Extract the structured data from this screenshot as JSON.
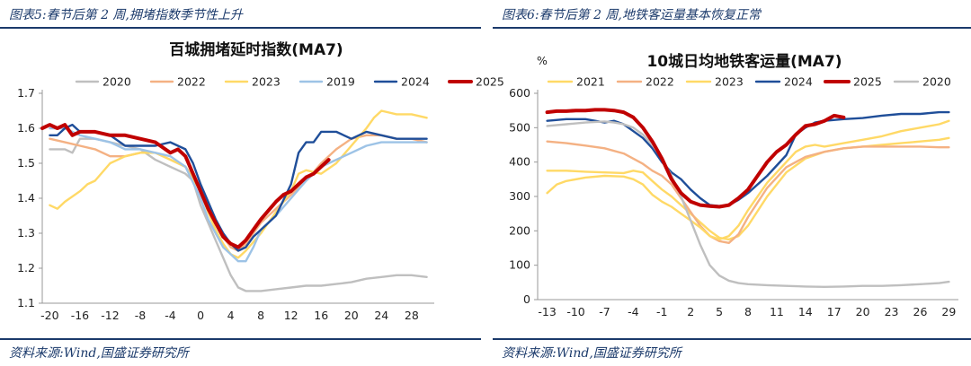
{
  "panels": {
    "left": {
      "title": "图表5:春节后第 2 周,拥堵指数季节性上升",
      "source": "资料来源:Wind,国盛证券研究所"
    },
    "right": {
      "title": "图表6:春节后第 2 周,地铁客运量基本恢复正常",
      "source": "资料来源:Wind,国盛证券研究所"
    }
  },
  "colors": {
    "2019": "#9dc3e6",
    "2020": "#bfbfbf",
    "2021": "#ffd966",
    "2022": "#f4b183",
    "2023": "#ffd966",
    "2024": "#1f4e99",
    "2025": "#c00000"
  },
  "chart_data": [
    {
      "type": "line",
      "title": "百城拥堵延时指数(MA7)",
      "xlabel": "",
      "ylabel": "",
      "xlim": [
        -21,
        31
      ],
      "ylim": [
        1.1,
        1.7
      ],
      "xticks": [
        -20,
        -16,
        -12,
        -8,
        -4,
        0,
        4,
        8,
        12,
        16,
        20,
        24,
        28
      ],
      "yticks": [
        1.1,
        1.2,
        1.3,
        1.4,
        1.5,
        1.6,
        1.7
      ],
      "legend": [
        "2020",
        "2022",
        "2023",
        "2019",
        "2024",
        "2025"
      ],
      "series": [
        {
          "name": "2020",
          "key": "2020",
          "width": 2.4,
          "x": [
            -20,
            -19,
            -18,
            -17,
            -16,
            -14,
            -12,
            -10,
            -8,
            -6,
            -4,
            -2,
            -1,
            0,
            1,
            2,
            3,
            4,
            5,
            6,
            8,
            10,
            12,
            14,
            16,
            18,
            20,
            22,
            24,
            26,
            28,
            30
          ],
          "y": [
            1.54,
            1.54,
            1.54,
            1.53,
            1.57,
            1.57,
            1.56,
            1.55,
            1.54,
            1.51,
            1.49,
            1.47,
            1.45,
            1.38,
            1.33,
            1.28,
            1.23,
            1.18,
            1.145,
            1.135,
            1.135,
            1.14,
            1.145,
            1.15,
            1.15,
            1.155,
            1.16,
            1.17,
            1.175,
            1.18,
            1.18,
            1.175
          ]
        },
        {
          "name": "2022",
          "key": "2022",
          "width": 2.4,
          "x": [
            -20,
            -18,
            -16,
            -14,
            -12,
            -10,
            -8,
            -6,
            -4,
            -2,
            -1,
            0,
            1,
            2,
            3,
            4,
            5,
            6,
            7,
            8,
            10,
            12,
            14,
            16,
            18,
            20,
            22,
            24,
            26,
            28,
            30
          ],
          "y": [
            1.57,
            1.56,
            1.55,
            1.54,
            1.52,
            1.52,
            1.53,
            1.53,
            1.51,
            1.49,
            1.46,
            1.42,
            1.37,
            1.33,
            1.29,
            1.26,
            1.25,
            1.27,
            1.3,
            1.33,
            1.37,
            1.41,
            1.45,
            1.5,
            1.54,
            1.57,
            1.58,
            1.58,
            1.57,
            1.57,
            1.56
          ]
        },
        {
          "name": "2023",
          "key": "2023",
          "width": 2.4,
          "x": [
            -20,
            -19,
            -18,
            -16,
            -15,
            -14,
            -12,
            -10,
            -8,
            -6,
            -4,
            -2,
            0,
            1,
            2,
            3,
            4,
            5,
            6,
            8,
            10,
            12,
            13,
            14,
            16,
            18,
            20,
            22,
            23,
            24,
            26,
            28,
            30
          ],
          "y": [
            1.38,
            1.37,
            1.39,
            1.42,
            1.44,
            1.45,
            1.5,
            1.52,
            1.53,
            1.53,
            1.51,
            1.49,
            1.42,
            1.36,
            1.31,
            1.27,
            1.24,
            1.23,
            1.25,
            1.3,
            1.36,
            1.42,
            1.47,
            1.48,
            1.47,
            1.5,
            1.55,
            1.6,
            1.63,
            1.65,
            1.64,
            1.64,
            1.63
          ]
        },
        {
          "name": "2019",
          "key": "2019",
          "width": 2.4,
          "x": [
            -20,
            -18,
            -16,
            -14,
            -12,
            -10,
            -8,
            -6,
            -4,
            -2,
            0,
            1,
            2,
            3,
            4,
            5,
            6,
            7,
            8,
            10,
            12,
            14,
            16,
            18,
            20,
            22,
            24,
            26,
            28,
            30
          ],
          "y": [
            1.6,
            1.6,
            1.58,
            1.57,
            1.56,
            1.54,
            1.54,
            1.53,
            1.52,
            1.49,
            1.4,
            1.34,
            1.3,
            1.26,
            1.24,
            1.22,
            1.22,
            1.26,
            1.31,
            1.35,
            1.4,
            1.45,
            1.49,
            1.51,
            1.53,
            1.55,
            1.56,
            1.56,
            1.56,
            1.56
          ]
        },
        {
          "name": "2024",
          "key": "2024",
          "width": 2.4,
          "x": [
            -20,
            -19,
            -18,
            -17,
            -16,
            -14,
            -12,
            -10,
            -8,
            -6,
            -4,
            -2,
            -1,
            0,
            1,
            2,
            3,
            4,
            5,
            6,
            7,
            8,
            10,
            12,
            13,
            14,
            15,
            16,
            18,
            20,
            22,
            24,
            26,
            28,
            30
          ],
          "y": [
            1.58,
            1.58,
            1.6,
            1.61,
            1.59,
            1.59,
            1.58,
            1.55,
            1.55,
            1.55,
            1.56,
            1.54,
            1.5,
            1.44,
            1.39,
            1.34,
            1.3,
            1.27,
            1.25,
            1.26,
            1.29,
            1.31,
            1.35,
            1.44,
            1.53,
            1.56,
            1.56,
            1.59,
            1.59,
            1.57,
            1.59,
            1.58,
            1.57,
            1.57,
            1.57
          ]
        },
        {
          "name": "2025",
          "key": "2025",
          "width": 4,
          "x": [
            -21,
            -20,
            -19,
            -18,
            -17,
            -16,
            -15,
            -14,
            -12,
            -10,
            -8,
            -6,
            -4,
            -3,
            -2,
            -1,
            0,
            1,
            2,
            3,
            4,
            5,
            6,
            7,
            8,
            10,
            11,
            12,
            13,
            14,
            15,
            16,
            17
          ],
          "y": [
            1.6,
            1.61,
            1.6,
            1.61,
            1.58,
            1.59,
            1.59,
            1.59,
            1.58,
            1.58,
            1.57,
            1.56,
            1.53,
            1.54,
            1.52,
            1.47,
            1.42,
            1.37,
            1.33,
            1.29,
            1.27,
            1.26,
            1.28,
            1.31,
            1.34,
            1.39,
            1.41,
            1.42,
            1.44,
            1.46,
            1.47,
            1.49,
            1.51
          ]
        }
      ]
    },
    {
      "type": "line",
      "title": "10城日均地铁客运量(MA7)",
      "unit": "%",
      "xlabel": "",
      "ylabel": "",
      "xlim": [
        -14,
        30
      ],
      "ylim": [
        0,
        600
      ],
      "xticks": [
        -13,
        -10,
        -7,
        -4,
        -1,
        2,
        5,
        8,
        11,
        14,
        17,
        20,
        23,
        26,
        29
      ],
      "yticks": [
        0,
        100,
        200,
        300,
        400,
        500,
        600
      ],
      "legend": [
        "2021",
        "2022",
        "2023",
        "2024",
        "2025",
        "2020"
      ],
      "series": [
        {
          "name": "2021",
          "key": "2021",
          "width": 2.4,
          "x": [
            -13,
            -11,
            -9,
            -7,
            -5,
            -4,
            -3,
            -2,
            -1,
            0,
            1,
            2,
            3,
            4,
            5,
            6,
            7,
            8,
            10,
            12,
            14,
            16,
            18,
            20,
            22,
            24,
            26,
            28,
            29
          ],
          "y": [
            375,
            375,
            372,
            370,
            368,
            375,
            370,
            345,
            320,
            300,
            275,
            250,
            225,
            200,
            180,
            175,
            185,
            215,
            300,
            370,
            410,
            430,
            440,
            445,
            450,
            455,
            460,
            465,
            470
          ]
        },
        {
          "name": "2022",
          "key": "2022",
          "width": 2.4,
          "x": [
            -13,
            -11,
            -9,
            -7,
            -5,
            -3,
            -2,
            -1,
            0,
            1,
            2,
            3,
            4,
            5,
            6,
            7,
            8,
            10,
            12,
            14,
            16,
            18,
            20,
            22,
            24,
            26,
            28,
            29
          ],
          "y": [
            460,
            455,
            448,
            440,
            425,
            395,
            375,
            360,
            335,
            295,
            255,
            215,
            185,
            170,
            165,
            190,
            240,
            325,
            385,
            415,
            430,
            440,
            445,
            445,
            445,
            445,
            443,
            443
          ]
        },
        {
          "name": "2023",
          "key": "2023",
          "width": 2.4,
          "x": [
            -13,
            -12,
            -11,
            -9,
            -7,
            -5,
            -4,
            -3,
            -2,
            -1,
            0,
            1,
            2,
            3,
            4,
            5,
            6,
            7,
            8,
            10,
            12,
            13,
            14,
            15,
            16,
            18,
            20,
            22,
            24,
            26,
            28,
            29
          ],
          "y": [
            310,
            335,
            345,
            355,
            360,
            358,
            350,
            335,
            305,
            285,
            270,
            250,
            230,
            210,
            185,
            175,
            185,
            215,
            260,
            340,
            400,
            430,
            445,
            450,
            445,
            455,
            465,
            475,
            490,
            500,
            510,
            520
          ]
        },
        {
          "name": "2024",
          "key": "2024",
          "width": 2.4,
          "x": [
            -13,
            -11,
            -9,
            -7,
            -6,
            -5,
            -4,
            -3,
            -2,
            -1,
            0,
            1,
            2,
            3,
            4,
            5,
            6,
            7,
            8,
            10,
            12,
            13,
            14,
            15,
            16,
            18,
            20,
            22,
            24,
            26,
            28,
            29
          ],
          "y": [
            520,
            525,
            525,
            515,
            520,
            510,
            490,
            470,
            440,
            400,
            370,
            350,
            320,
            295,
            275,
            272,
            275,
            290,
            310,
            360,
            420,
            480,
            500,
            515,
            520,
            525,
            528,
            535,
            540,
            540,
            545,
            545
          ]
        },
        {
          "name": "2025",
          "key": "2025",
          "width": 4,
          "x": [
            -13,
            -12,
            -11,
            -10,
            -9,
            -8,
            -7,
            -6,
            -5,
            -4,
            -3,
            -2,
            -1,
            0,
            1,
            2,
            3,
            4,
            5,
            6,
            7,
            8,
            9,
            10,
            11,
            12,
            13,
            14,
            15,
            16,
            17,
            18
          ],
          "y": [
            545,
            548,
            548,
            550,
            550,
            552,
            552,
            550,
            545,
            530,
            500,
            460,
            410,
            350,
            310,
            285,
            275,
            272,
            270,
            275,
            295,
            320,
            360,
            400,
            430,
            450,
            480,
            505,
            510,
            520,
            535,
            530
          ]
        },
        {
          "name": "2020",
          "key": "2020",
          "width": 2.4,
          "x": [
            -13,
            -11,
            -9,
            -7,
            -6,
            -5,
            -4,
            -3,
            -2,
            -1,
            0,
            1,
            2,
            3,
            4,
            5,
            6,
            7,
            8,
            10,
            12,
            14,
            16,
            18,
            20,
            22,
            24,
            26,
            28,
            29
          ],
          "y": [
            505,
            510,
            515,
            518,
            515,
            510,
            500,
            480,
            450,
            410,
            360,
            300,
            230,
            160,
            100,
            70,
            55,
            48,
            45,
            42,
            40,
            38,
            37,
            38,
            40,
            40,
            42,
            45,
            48,
            52
          ]
        }
      ]
    }
  ]
}
